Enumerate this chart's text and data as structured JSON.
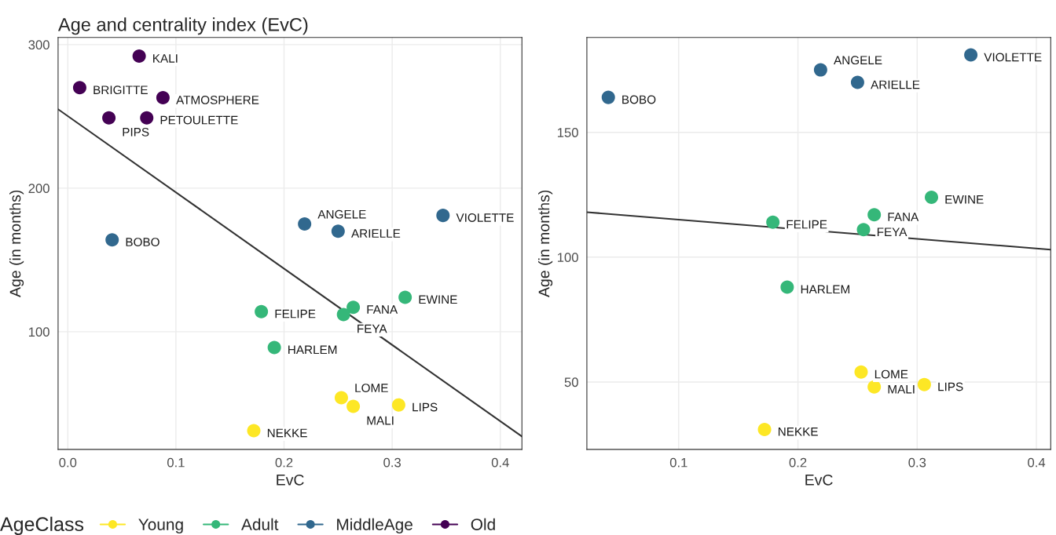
{
  "chart_data": [
    {
      "type": "scatter",
      "title": "Age and centrality index (EvC)",
      "xlabel": "EvC",
      "ylabel": "Age (in months)",
      "legend_title": "AgeClass",
      "legend": "bottom",
      "grid": true,
      "xlim": [
        -0.009,
        0.42
      ],
      "xticks": [
        {
          "value": 0,
          "label": "0.0"
        },
        0.1,
        0.2,
        0.3,
        0.4
      ],
      "ylim": [
        18,
        305
      ],
      "yticks": [
        100,
        200,
        300
      ],
      "series": [
        {
          "name": "Young",
          "color": "#fde725",
          "x": [
            0.253,
            0.264,
            0.306,
            0.172
          ],
          "values": [
            54,
            48,
            49,
            31
          ]
        },
        {
          "name": "Adult",
          "color": "#35b779",
          "x": [
            0.312,
            0.264,
            0.255,
            0.179,
            0.191
          ],
          "values": [
            124,
            117,
            112,
            114,
            89
          ]
        },
        {
          "name": "MiddleAge",
          "color": "#31688e",
          "x": [
            0.041,
            0.219,
            0.25,
            0.347
          ],
          "values": [
            164,
            175,
            170,
            181
          ]
        },
        {
          "name": "Old",
          "color": "#440154",
          "x": [
            0.066,
            0.011,
            0.088,
            0.038,
            0.073
          ],
          "values": [
            292,
            270,
            263,
            249,
            249
          ]
        },
        {
          "type": "line",
          "color": "#333333",
          "x": [
            -0.009,
            0.42
          ],
          "values": [
            255,
            27
          ]
        }
      ],
      "annotations": [
        {
          "text": "LOME",
          "x": 0.253,
          "y": 54
        },
        {
          "text": "MALI",
          "x": 0.264,
          "y": 48
        },
        {
          "text": "LIPS",
          "x": 0.306,
          "y": 49
        },
        {
          "text": "NEKKE",
          "x": 0.172,
          "y": 31
        },
        {
          "text": "EWINE",
          "x": 0.312,
          "y": 124
        },
        {
          "text": "FANA",
          "x": 0.264,
          "y": 117
        },
        {
          "text": "FEYA",
          "x": 0.255,
          "y": 112
        },
        {
          "text": "FELIPE",
          "x": 0.179,
          "y": 114
        },
        {
          "text": "HARLEM",
          "x": 0.191,
          "y": 89
        },
        {
          "text": "BOBO",
          "x": 0.041,
          "y": 164
        },
        {
          "text": "ANGELE",
          "x": 0.219,
          "y": 175
        },
        {
          "text": "ARIELLE",
          "x": 0.25,
          "y": 170
        },
        {
          "text": "VIOLETTE",
          "x": 0.347,
          "y": 181
        },
        {
          "text": "KALI",
          "x": 0.066,
          "y": 292
        },
        {
          "text": "BRIGITTE",
          "x": 0.011,
          "y": 270
        },
        {
          "text": "ATMOSPHERE",
          "x": 0.088,
          "y": 263
        },
        {
          "text": "PIPS",
          "x": 0.038,
          "y": 249
        },
        {
          "text": "PETOULETTE",
          "x": 0.073,
          "y": 249
        }
      ]
    },
    {
      "type": "scatter",
      "xlabel": "EvC",
      "ylabel": "Age (in months)",
      "grid": true,
      "xlim": [
        0.023,
        0.412
      ],
      "xticks": [
        0.1,
        0.2,
        0.3,
        0.4
      ],
      "ylim": [
        23,
        188
      ],
      "yticks": [
        50,
        100,
        150
      ],
      "series": [
        {
          "name": "Young",
          "color": "#fde725",
          "x": [
            0.253,
            0.264,
            0.306,
            0.172
          ],
          "values": [
            54,
            48,
            49,
            31
          ]
        },
        {
          "name": "Adult",
          "color": "#35b779",
          "x": [
            0.312,
            0.264,
            0.255,
            0.179,
            0.191
          ],
          "values": [
            124,
            117,
            111,
            114,
            88
          ]
        },
        {
          "name": "MiddleAge",
          "color": "#31688e",
          "x": [
            0.041,
            0.219,
            0.25,
            0.345
          ],
          "values": [
            164,
            175,
            170,
            181
          ]
        },
        {
          "type": "line",
          "color": "#333333",
          "x": [
            0.023,
            0.412
          ],
          "values": [
            118,
            103
          ]
        }
      ],
      "annotations": [
        {
          "text": "LOME",
          "x": 0.253,
          "y": 54
        },
        {
          "text": "MALI",
          "x": 0.264,
          "y": 48
        },
        {
          "text": "LIPS",
          "x": 0.306,
          "y": 49
        },
        {
          "text": "NEKKE",
          "x": 0.172,
          "y": 31
        },
        {
          "text": "EWINE",
          "x": 0.312,
          "y": 124
        },
        {
          "text": "FANA",
          "x": 0.264,
          "y": 117
        },
        {
          "text": "FEYA",
          "x": 0.255,
          "y": 111
        },
        {
          "text": "FELIPE",
          "x": 0.179,
          "y": 114
        },
        {
          "text": "HARLEM",
          "x": 0.191,
          "y": 88
        },
        {
          "text": "BOBO",
          "x": 0.041,
          "y": 164
        },
        {
          "text": "ANGELE",
          "x": 0.219,
          "y": 175
        },
        {
          "text": "ARIELLE",
          "x": 0.25,
          "y": 170
        },
        {
          "text": "VIOLETTE",
          "x": 0.345,
          "y": 181
        }
      ]
    }
  ]
}
